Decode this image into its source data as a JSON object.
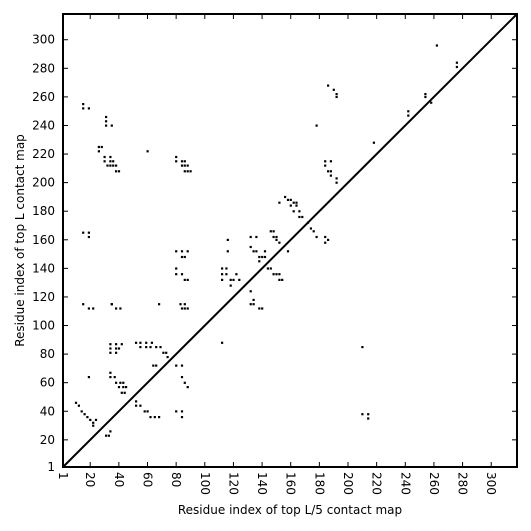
{
  "chart_data": {
    "type": "scatter",
    "xlabel": "Residue index of top L/5 contact map",
    "ylabel": "Residue index of top L contact map",
    "xlim": [
      1,
      318
    ],
    "ylim": [
      1,
      318
    ],
    "x_ticks": [
      1,
      20,
      40,
      60,
      80,
      100,
      120,
      140,
      160,
      180,
      200,
      220,
      240,
      260,
      280,
      300
    ],
    "y_ticks": [
      1,
      20,
      40,
      60,
      80,
      100,
      120,
      140,
      160,
      180,
      200,
      220,
      240,
      260,
      280,
      300
    ],
    "x_tick_rotation": "vertical",
    "diagonal_line": true,
    "grid": false,
    "series": [
      {
        "values_note": "",
        "points": [
          [
            10,
            46
          ],
          [
            12,
            44
          ],
          [
            14,
            40
          ],
          [
            16,
            38
          ],
          [
            18,
            36
          ],
          [
            20,
            34
          ],
          [
            22,
            32
          ],
          [
            22,
            30
          ],
          [
            24,
            34
          ],
          [
            15,
            255
          ],
          [
            15,
            252
          ],
          [
            19,
            252
          ],
          [
            15,
            165
          ],
          [
            19,
            165
          ],
          [
            19,
            162
          ],
          [
            15,
            115
          ],
          [
            19,
            112
          ],
          [
            22,
            112
          ],
          [
            19,
            64
          ],
          [
            26,
            225
          ],
          [
            26,
            222
          ],
          [
            28,
            225
          ],
          [
            30,
            218
          ],
          [
            30,
            215
          ],
          [
            32,
            212
          ],
          [
            31,
            246
          ],
          [
            31,
            243
          ],
          [
            31,
            240
          ],
          [
            35,
            240
          ],
          [
            34,
            218
          ],
          [
            34,
            215
          ],
          [
            34,
            212
          ],
          [
            36,
            215
          ],
          [
            36,
            212
          ],
          [
            38,
            208
          ],
          [
            40,
            208
          ],
          [
            38,
            212
          ],
          [
            35,
            115
          ],
          [
            38,
            112
          ],
          [
            41,
            112
          ],
          [
            35,
            115
          ],
          [
            34,
            87
          ],
          [
            34,
            84
          ],
          [
            34,
            81
          ],
          [
            38,
            87
          ],
          [
            38,
            84
          ],
          [
            38,
            81
          ],
          [
            42,
            87
          ],
          [
            40,
            84
          ],
          [
            34,
            67
          ],
          [
            34,
            64
          ],
          [
            37,
            64
          ],
          [
            38,
            60
          ],
          [
            41,
            60
          ],
          [
            43,
            60
          ],
          [
            40,
            57
          ],
          [
            43,
            57
          ],
          [
            45,
            57
          ],
          [
            42,
            53
          ],
          [
            44,
            53
          ],
          [
            31,
            23
          ],
          [
            33,
            23
          ],
          [
            34,
            26
          ],
          [
            52,
            88
          ],
          [
            55,
            88
          ],
          [
            55,
            85
          ],
          [
            59,
            88
          ],
          [
            59,
            85
          ],
          [
            62,
            85
          ],
          [
            63,
            88
          ],
          [
            66,
            85
          ],
          [
            69,
            85
          ],
          [
            71,
            81
          ],
          [
            73,
            81
          ],
          [
            74,
            78
          ],
          [
            60,
            222
          ],
          [
            68,
            115
          ],
          [
            64,
            72
          ],
          [
            66,
            72
          ],
          [
            52,
            47
          ],
          [
            52,
            44
          ],
          [
            55,
            44
          ],
          [
            58,
            40
          ],
          [
            60,
            40
          ],
          [
            62,
            36
          ],
          [
            65,
            36
          ],
          [
            68,
            36
          ],
          [
            80,
            218
          ],
          [
            80,
            215
          ],
          [
            84,
            215
          ],
          [
            86,
            215
          ],
          [
            84,
            212
          ],
          [
            86,
            212
          ],
          [
            88,
            208
          ],
          [
            86,
            208
          ],
          [
            90,
            208
          ],
          [
            88,
            212
          ],
          [
            80,
            152
          ],
          [
            84,
            152
          ],
          [
            88,
            152
          ],
          [
            86,
            148
          ],
          [
            84,
            148
          ],
          [
            80,
            140
          ],
          [
            80,
            136
          ],
          [
            84,
            136
          ],
          [
            86,
            132
          ],
          [
            88,
            132
          ],
          [
            83,
            115
          ],
          [
            86,
            112
          ],
          [
            88,
            112
          ],
          [
            84,
            112
          ],
          [
            86,
            115
          ],
          [
            80,
            72
          ],
          [
            84,
            72
          ],
          [
            84,
            64
          ],
          [
            86,
            60
          ],
          [
            88,
            57
          ],
          [
            80,
            40
          ],
          [
            84,
            40
          ],
          [
            84,
            36
          ],
          [
            112,
            140
          ],
          [
            112,
            136
          ],
          [
            112,
            132
          ],
          [
            115,
            140
          ],
          [
            115,
            136
          ],
          [
            118,
            132
          ],
          [
            120,
            132
          ],
          [
            118,
            128
          ],
          [
            122,
            136
          ],
          [
            116,
            152
          ],
          [
            116,
            160
          ],
          [
            112,
            88
          ],
          [
            124,
            132
          ],
          [
            132,
            162
          ],
          [
            132,
            155
          ],
          [
            134,
            152
          ],
          [
            136,
            162
          ],
          [
            136,
            152
          ],
          [
            138,
            148
          ],
          [
            140,
            148
          ],
          [
            138,
            145
          ],
          [
            142,
            148
          ],
          [
            142,
            152
          ],
          [
            132,
            124
          ],
          [
            134,
            118
          ],
          [
            134,
            115
          ],
          [
            138,
            112
          ],
          [
            140,
            112
          ],
          [
            132,
            115
          ],
          [
            146,
            166
          ],
          [
            148,
            162
          ],
          [
            148,
            166
          ],
          [
            150,
            160
          ],
          [
            152,
            158
          ],
          [
            150,
            162
          ],
          [
            146,
            140
          ],
          [
            148,
            136
          ],
          [
            150,
            136
          ],
          [
            152,
            132
          ],
          [
            154,
            132
          ],
          [
            152,
            136
          ],
          [
            144,
            140
          ],
          [
            156,
            190
          ],
          [
            158,
            188
          ],
          [
            160,
            188
          ],
          [
            162,
            186
          ],
          [
            164,
            184
          ],
          [
            160,
            184
          ],
          [
            162,
            180
          ],
          [
            166,
            180
          ],
          [
            166,
            176
          ],
          [
            168,
            176
          ],
          [
            172,
            172
          ],
          [
            174,
            168
          ],
          [
            176,
            166
          ],
          [
            178,
            162
          ],
          [
            184,
            162
          ],
          [
            184,
            158
          ],
          [
            186,
            160
          ],
          [
            164,
            186
          ],
          [
            158,
            152
          ],
          [
            152,
            186
          ],
          [
            184,
            215
          ],
          [
            184,
            212
          ],
          [
            186,
            208
          ],
          [
            188,
            208
          ],
          [
            188,
            215
          ],
          [
            192,
            203
          ],
          [
            192,
            200
          ],
          [
            188,
            205
          ],
          [
            178,
            240
          ],
          [
            186,
            268
          ],
          [
            190,
            265
          ],
          [
            192,
            262
          ],
          [
            192,
            260
          ],
          [
            210,
            85
          ],
          [
            210,
            38
          ],
          [
            214,
            38
          ],
          [
            214,
            35
          ],
          [
            218,
            228
          ],
          [
            242,
            250
          ],
          [
            242,
            247
          ],
          [
            254,
            262
          ],
          [
            254,
            260
          ],
          [
            258,
            256
          ],
          [
            262,
            296
          ],
          [
            276,
            284
          ],
          [
            276,
            281
          ]
        ]
      }
    ]
  }
}
